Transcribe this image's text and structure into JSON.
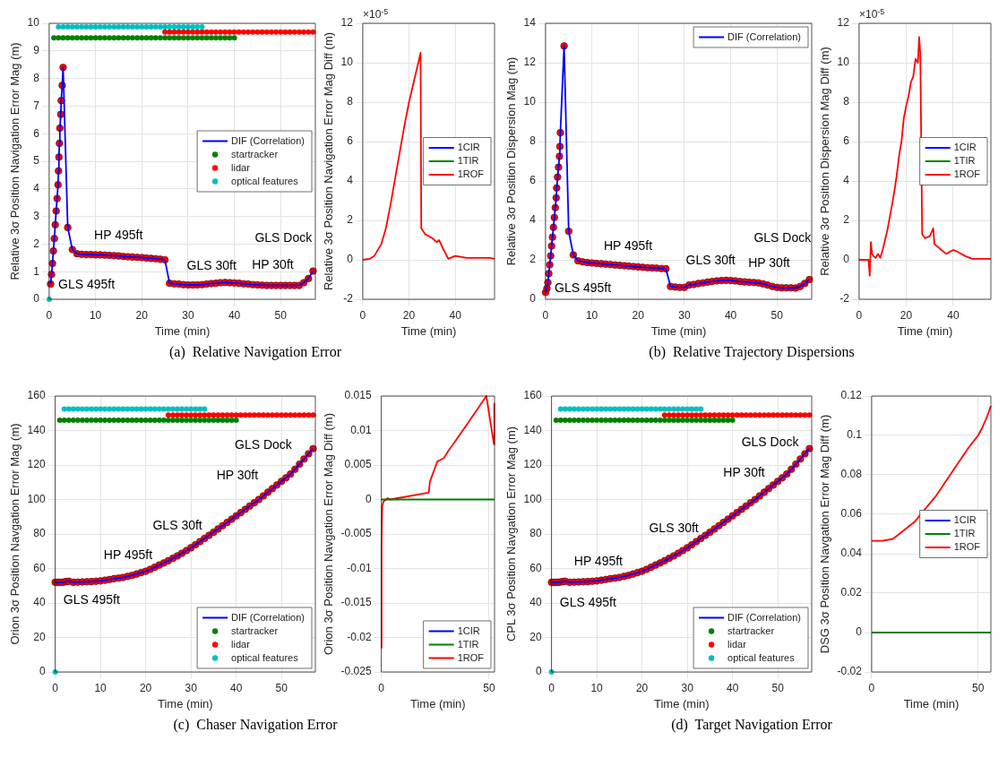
{
  "chart_data": [
    {
      "type": "line",
      "xlabel": "Time (min)",
      "ylabel": "Relative 3σ Position Navigation Error Mag (m)",
      "xlim": [
        0,
        57.5
      ],
      "xticks": [
        0,
        10,
        20,
        30,
        40,
        50
      ],
      "ylim": [
        0,
        10
      ],
      "yticks": [
        0,
        1,
        2,
        3,
        4,
        5,
        6,
        7,
        8,
        9,
        10
      ],
      "grid": true,
      "legend": "right",
      "x": [
        0.3,
        0.5,
        0.7,
        0.9,
        1.1,
        1.3,
        1.5,
        1.7,
        1.9,
        2,
        2.1,
        2.2,
        2.3,
        2.5,
        2.6,
        2.8,
        3,
        4,
        5,
        6,
        7,
        8,
        9,
        10,
        11,
        12,
        13,
        14,
        15,
        16,
        17,
        18,
        19,
        20,
        21,
        22,
        23,
        24,
        25,
        26,
        27,
        28,
        29,
        30,
        31,
        32,
        33,
        34,
        35,
        36,
        37,
        38,
        39,
        40,
        41,
        42,
        43,
        44,
        45,
        46,
        47,
        48,
        49,
        50,
        51,
        52,
        53,
        54,
        55,
        56,
        57
      ],
      "series": [
        {
          "name": "DIF (Correlation)",
          "color": "#0000ff",
          "values": [
            0.55,
            0.9,
            1.3,
            1.75,
            2.2,
            2.7,
            3.2,
            3.65,
            4.15,
            4.65,
            5.15,
            5.65,
            6.2,
            6.7,
            7.2,
            7.75,
            8.4,
            2.6,
            1.8,
            1.65,
            1.63,
            1.62,
            1.62,
            1.61,
            1.61,
            1.6,
            1.59,
            1.58,
            1.57,
            1.55,
            1.54,
            1.53,
            1.52,
            1.51,
            1.49,
            1.48,
            1.47,
            1.45,
            1.43,
            0.58,
            0.56,
            0.55,
            0.53,
            0.52,
            0.52,
            0.52,
            0.53,
            0.55,
            0.57,
            0.58,
            0.6,
            0.61,
            0.6,
            0.59,
            0.58,
            0.56,
            0.55,
            0.53,
            0.52,
            0.51,
            0.5,
            0.5,
            0.5,
            0.5,
            0.5,
            0.5,
            0.5,
            0.5,
            0.6,
            0.75,
            1.02
          ]
        },
        {
          "type": "scatter",
          "color": "#ff0000",
          "values": [
            0.55,
            0.9,
            1.3,
            1.75,
            2.2,
            2.7,
            3.2,
            3.65,
            4.15,
            4.65,
            5.15,
            5.65,
            6.2,
            6.7,
            7.2,
            7.75,
            8.4,
            2.6,
            1.8,
            1.65,
            1.63,
            1.62,
            1.62,
            1.61,
            1.61,
            1.6,
            1.59,
            1.58,
            1.57,
            1.55,
            1.54,
            1.53,
            1.52,
            1.51,
            1.49,
            1.48,
            1.47,
            1.45,
            1.43,
            0.58,
            0.56,
            0.55,
            0.53,
            0.52,
            0.52,
            0.52,
            0.53,
            0.55,
            0.57,
            0.58,
            0.6,
            0.61,
            0.6,
            0.59,
            0.58,
            0.56,
            0.55,
            0.53,
            0.52,
            0.51,
            0.5,
            0.5,
            0.5,
            0.5,
            0.5,
            0.5,
            0.5,
            0.5,
            0.6,
            0.75,
            1.02
          ]
        },
        {
          "type": "scatter",
          "name": "startracker",
          "color": "#008000",
          "x": [
            1,
            2,
            3,
            4,
            5,
            6,
            7,
            8,
            9,
            10,
            11,
            12,
            13,
            14,
            15,
            16,
            17,
            18,
            19,
            20,
            21,
            22,
            23,
            24,
            25,
            26,
            27,
            28,
            29,
            30,
            31,
            32,
            33,
            34,
            35,
            36,
            37,
            38,
            39,
            40
          ],
          "values": [
            9.47,
            9.47,
            9.47,
            9.47,
            9.47,
            9.47,
            9.47,
            9.47,
            9.47,
            9.47,
            9.47,
            9.47,
            9.47,
            9.47,
            9.47,
            9.47,
            9.47,
            9.47,
            9.47,
            9.47,
            9.47,
            9.47,
            9.47,
            9.47,
            9.47,
            9.47,
            9.47,
            9.47,
            9.47,
            9.47,
            9.47,
            9.47,
            9.47,
            9.47,
            9.47,
            9.47,
            9.47,
            9.47,
            9.47,
            9.47
          ]
        },
        {
          "type": "scatter",
          "name": "lidar",
          "color": "#ff0000",
          "x": [
            25,
            26,
            27,
            28,
            29,
            30,
            31,
            32,
            33,
            34,
            35,
            36,
            37,
            38,
            39,
            40,
            41,
            42,
            43,
            44,
            45,
            46,
            47,
            48,
            49,
            50,
            51,
            52,
            53,
            54,
            55,
            56,
            57
          ],
          "values": [
            9.68,
            9.68,
            9.68,
            9.68,
            9.68,
            9.68,
            9.68,
            9.68,
            9.68,
            9.68,
            9.68,
            9.68,
            9.68,
            9.68,
            9.68,
            9.68,
            9.68,
            9.68,
            9.68,
            9.68,
            9.68,
            9.68,
            9.68,
            9.68,
            9.68,
            9.68,
            9.68,
            9.68,
            9.68,
            9.68,
            9.68,
            9.68,
            9.68
          ]
        },
        {
          "type": "scatter",
          "name": "optical features",
          "color": "#00bfbf",
          "x": [
            0,
            2,
            3,
            4,
            5,
            6,
            7,
            8,
            9,
            10,
            11,
            12,
            13,
            14,
            15,
            16,
            17,
            18,
            19,
            20,
            21,
            22,
            23,
            24,
            25,
            26,
            27,
            28,
            29,
            30,
            31,
            32,
            33
          ],
          "values": [
            0,
            9.87,
            9.87,
            9.87,
            9.87,
            9.87,
            9.87,
            9.87,
            9.87,
            9.87,
            9.87,
            9.87,
            9.87,
            9.87,
            9.87,
            9.87,
            9.87,
            9.87,
            9.87,
            9.87,
            9.87,
            9.87,
            9.87,
            9.87,
            9.87,
            9.87,
            9.87,
            9.87,
            9.87,
            9.87,
            9.87,
            9.87,
            9.87
          ]
        }
      ],
      "annotations": [
        "(a)  Relative Navigation Error",
        "GLS 495ft",
        "HP 495ft",
        "GLS 30ft",
        "HP 30ft",
        "GLS Dock"
      ]
    },
    {
      "type": "line",
      "xlabel": "Time (min)",
      "ylabel": "Relative 3σ Position Navigation Error Mag Diff (m)",
      "xlim": [
        0,
        57
      ],
      "xticks": [
        0,
        20,
        40
      ],
      "ylim": [
        -2,
        12
      ],
      "yticks": [
        -2,
        0,
        2,
        4,
        6,
        8,
        10,
        12
      ],
      "grid": true,
      "legend": "right",
      "x": [
        0,
        3,
        5,
        8,
        10,
        12,
        15,
        18,
        20,
        22,
        24,
        25,
        25.3,
        27,
        30,
        31,
        32,
        33,
        35,
        37,
        40,
        45,
        50,
        55,
        57
      ],
      "series": [
        {
          "name": "1CIR",
          "color": "#0000ff",
          "values": [
            null,
            null,
            null,
            null,
            null,
            null,
            null,
            null,
            null,
            null,
            null,
            null,
            null,
            null,
            null,
            null,
            null,
            null,
            null,
            null,
            null,
            null,
            null,
            null,
            null
          ]
        },
        {
          "name": "1TIR",
          "color": "#008000",
          "values": [
            null,
            null,
            null,
            null,
            null,
            null,
            null,
            null,
            null,
            null,
            null,
            null,
            null,
            null,
            null,
            null,
            null,
            null,
            null,
            null,
            null,
            null,
            null,
            null,
            null
          ]
        },
        {
          "name": "1ROF",
          "color": "#ff0000",
          "values": [
            0,
            0.05,
            0.2,
            0.8,
            1.6,
            2.8,
            4.8,
            6.8,
            8,
            9,
            10,
            10.5,
            1.6,
            1.3,
            1.1,
            1,
            0.9,
            1,
            0.5,
            0.05,
            0.2,
            0.1,
            0.1,
            0.1,
            0.05
          ]
        }
      ],
      "annotations": [
        "×10$^{-5}$"
      ]
    },
    {
      "type": "line",
      "xlabel": "Time (min)",
      "ylabel": "Relative 3σ Position Dispersion Mag (m)",
      "xlim": [
        0,
        57.5
      ],
      "xticks": [
        0,
        10,
        20,
        30,
        40,
        50
      ],
      "ylim": [
        0,
        14
      ],
      "yticks": [
        0,
        2,
        4,
        6,
        8,
        10,
        12,
        14
      ],
      "grid": true,
      "legend": "top right",
      "x": [
        0,
        0.3,
        0.5,
        0.7,
        0.9,
        1.1,
        1.3,
        1.5,
        1.7,
        1.9,
        2.1,
        2.3,
        2.4,
        2.6,
        2.8,
        3,
        3.1,
        3.2,
        4,
        5,
        6,
        7,
        8,
        9,
        10,
        11,
        12,
        13,
        14,
        15,
        16,
        17,
        18,
        19,
        20,
        21,
        22,
        23,
        24,
        25,
        26,
        27,
        28,
        29,
        30,
        31,
        32,
        33,
        34,
        35,
        36,
        37,
        38,
        39,
        40,
        41,
        42,
        43,
        44,
        45,
        46,
        47,
        48,
        49,
        50,
        51,
        52,
        53,
        54,
        55,
        56,
        57
      ],
      "series": [
        {
          "name": "DIF (Correlation)",
          "color": "#0000ff",
          "values": [
            0.35,
            0.55,
            0.85,
            1.3,
            1.75,
            2.2,
            2.7,
            3.15,
            3.65,
            4.15,
            4.65,
            5.15,
            5.65,
            6.2,
            6.7,
            7.25,
            7.75,
            8.45,
            12.85,
            3.45,
            2.25,
            1.95,
            1.9,
            1.86,
            1.84,
            1.82,
            1.8,
            1.78,
            1.76,
            1.74,
            1.72,
            1.7,
            1.68,
            1.66,
            1.64,
            1.62,
            1.6,
            1.59,
            1.58,
            1.56,
            1.55,
            0.65,
            0.62,
            0.6,
            0.6,
            0.72,
            0.75,
            0.8,
            0.83,
            0.87,
            0.9,
            0.93,
            0.95,
            0.96,
            0.95,
            0.93,
            0.9,
            0.88,
            0.86,
            0.85,
            0.83,
            0.78,
            0.72,
            0.65,
            0.6,
            0.58,
            0.58,
            0.58,
            0.57,
            0.65,
            0.8,
            1
          ]
        },
        {
          "type": "scatter",
          "color": "#ff0000",
          "values": [
            0.35,
            0.55,
            0.85,
            1.3,
            1.75,
            2.2,
            2.7,
            3.15,
            3.65,
            4.15,
            4.65,
            5.15,
            5.65,
            6.2,
            6.7,
            7.25,
            7.75,
            8.45,
            12.85,
            3.45,
            2.25,
            1.95,
            1.9,
            1.86,
            1.84,
            1.82,
            1.8,
            1.78,
            1.76,
            1.74,
            1.72,
            1.7,
            1.68,
            1.66,
            1.64,
            1.62,
            1.6,
            1.59,
            1.58,
            1.56,
            1.55,
            0.65,
            0.62,
            0.6,
            0.6,
            0.72,
            0.75,
            0.8,
            0.83,
            0.87,
            0.9,
            0.93,
            0.95,
            0.96,
            0.95,
            0.93,
            0.9,
            0.88,
            0.86,
            0.85,
            0.83,
            0.78,
            0.72,
            0.65,
            0.6,
            0.58,
            0.58,
            0.58,
            0.57,
            0.65,
            0.8,
            1
          ]
        }
      ],
      "annotations": [
        "(b)  Relative Trajectory Dispersions",
        "GLS 495ft",
        "HP 495ft",
        "GLS 30ft",
        "HP 30ft",
        "GLS Dock"
      ]
    },
    {
      "type": "line",
      "xlabel": "Time (min)",
      "ylabel": "Relative 3σ Position Dispersion Mag Diff (m)",
      "xlim": [
        0,
        56
      ],
      "xticks": [
        0,
        20,
        40
      ],
      "ylim": [
        -2,
        12
      ],
      "yticks": [
        -2,
        0,
        2,
        4,
        6,
        8,
        10,
        12
      ],
      "grid": true,
      "legend": "right",
      "x": [
        0,
        4,
        4.5,
        5,
        5.5,
        6,
        7,
        8,
        9,
        10,
        12,
        14,
        15,
        16,
        17,
        18,
        19,
        20,
        21,
        22,
        23,
        24,
        25,
        25.5,
        26,
        26.8,
        28,
        30,
        31.5,
        32,
        35,
        37,
        40,
        42,
        45,
        48,
        50,
        56
      ],
      "series": [
        {
          "name": "1CIR",
          "color": "#0000ff",
          "values": [
            null,
            null,
            null,
            null,
            null,
            null,
            null,
            null,
            null,
            null,
            null,
            null,
            null,
            null,
            null,
            null,
            null,
            null,
            null,
            null,
            null,
            null,
            null,
            null,
            null,
            null,
            null,
            null,
            null,
            null,
            null,
            null,
            null,
            null,
            null,
            null,
            null,
            null
          ]
        },
        {
          "name": "1TIR",
          "color": "#008000",
          "values": [
            null,
            null,
            null,
            null,
            null,
            null,
            null,
            null,
            null,
            null,
            null,
            null,
            null,
            null,
            null,
            null,
            null,
            null,
            null,
            null,
            null,
            null,
            null,
            null,
            null,
            null,
            null,
            null,
            null,
            null,
            null,
            null,
            null,
            null,
            null,
            null,
            null,
            null
          ]
        },
        {
          "name": "1ROF",
          "color": "#ff0000",
          "values": [
            0,
            0,
            -0.8,
            0.9,
            0.3,
            0.2,
            0.1,
            0.3,
            0.1,
            0.5,
            1.5,
            2.8,
            3.5,
            4.3,
            5.3,
            6,
            7.2,
            7.8,
            8.3,
            9,
            9.3,
            10.2,
            10,
            11.3,
            10.5,
            1.3,
            1.1,
            1.2,
            1.6,
            0.8,
            0.5,
            0.3,
            0.5,
            0.4,
            0.2,
            0.05,
            0.05,
            0.05
          ]
        }
      ],
      "annotations": [
        "×10$^{-5}$"
      ]
    },
    {
      "type": "line",
      "xlabel": "Time (min)",
      "ylabel": "Orion 3σ Position Navgation Error Mag (m)",
      "xlim": [
        0,
        57.5
      ],
      "xticks": [
        0,
        10,
        20,
        30,
        40,
        50
      ],
      "ylim": [
        0,
        160
      ],
      "yticks": [
        0,
        20,
        40,
        60,
        80,
        100,
        120,
        140,
        160
      ],
      "grid": true,
      "legend": "bottom right",
      "x": [
        0,
        0.5,
        1,
        1.5,
        2,
        2.5,
        3,
        4,
        5,
        6,
        7,
        8,
        9,
        10,
        11,
        12,
        13,
        14,
        15,
        16,
        17,
        18,
        19,
        20,
        21,
        22,
        23,
        24,
        25,
        26,
        27,
        28,
        29,
        30,
        31,
        32,
        33,
        34,
        35,
        36,
        37,
        38,
        39,
        40,
        41,
        42,
        43,
        44,
        45,
        46,
        47,
        48,
        49,
        50,
        51,
        52,
        53,
        54,
        55,
        56,
        57
      ],
      "series": [
        {
          "name": "DIF (Correlation)",
          "color": "#0000ff",
          "values": [
            52,
            52,
            52,
            52,
            52.2,
            52.4,
            52.6,
            52,
            52.1,
            52.2,
            52.3,
            52.4,
            52.6,
            52.8,
            53.2,
            53.6,
            54.1,
            54.4,
            54.8,
            55.4,
            56,
            56.8,
            57.6,
            58.4,
            59.5,
            60.7,
            62,
            63.2,
            64.5,
            65.9,
            67.3,
            68.8,
            70.4,
            72,
            73.8,
            75.6,
            77.4,
            79.2,
            81,
            82.9,
            84.8,
            86.7,
            88.6,
            90.5,
            92.4,
            94.3,
            96.2,
            98.1,
            100,
            102.1,
            104.2,
            106.3,
            108.4,
            110.5,
            112.6,
            114.8,
            117.5,
            120.5,
            123.5,
            126.5,
            129.5
          ]
        },
        {
          "type": "scatter",
          "color": "#ff0000",
          "values": [
            52,
            52,
            52,
            52,
            52.2,
            52.4,
            52.6,
            52,
            52.1,
            52.2,
            52.3,
            52.4,
            52.6,
            52.8,
            53.2,
            53.6,
            54.1,
            54.4,
            54.8,
            55.4,
            56,
            56.8,
            57.6,
            58.4,
            59.5,
            60.7,
            62,
            63.2,
            64.5,
            65.9,
            67.3,
            68.8,
            70.4,
            72,
            73.8,
            75.6,
            77.4,
            79.2,
            81,
            82.9,
            84.8,
            86.7,
            88.6,
            90.5,
            92.4,
            94.3,
            96.2,
            98.1,
            100,
            102.1,
            104.2,
            106.3,
            108.4,
            110.5,
            112.6,
            114.8,
            117.5,
            120.5,
            123.5,
            126.5,
            129.5
          ]
        },
        {
          "type": "scatter",
          "name": "startracker",
          "color": "#008000",
          "x": [
            1,
            2,
            3,
            4,
            5,
            6,
            7,
            8,
            9,
            10,
            11,
            12,
            13,
            14,
            15,
            16,
            17,
            18,
            19,
            20,
            21,
            22,
            23,
            24,
            25,
            26,
            27,
            28,
            29,
            30,
            31,
            32,
            33,
            34,
            35,
            36,
            37,
            38,
            39,
            40
          ],
          "values": [
            146,
            146,
            146,
            146,
            146,
            146,
            146,
            146,
            146,
            146,
            146,
            146,
            146,
            146,
            146,
            146,
            146,
            146,
            146,
            146,
            146,
            146,
            146,
            146,
            146,
            146,
            146,
            146,
            146,
            146,
            146,
            146,
            146,
            146,
            146,
            146,
            146,
            146,
            146,
            146
          ]
        },
        {
          "type": "scatter",
          "name": "lidar",
          "color": "#ff0000",
          "x": [
            25,
            26,
            27,
            28,
            29,
            30,
            31,
            32,
            33,
            34,
            35,
            36,
            37,
            38,
            39,
            40,
            41,
            42,
            43,
            44,
            45,
            46,
            47,
            48,
            49,
            50,
            51,
            52,
            53,
            54,
            55,
            56,
            57
          ],
          "values": [
            149,
            149,
            149,
            149,
            149,
            149,
            149,
            149,
            149,
            149,
            149,
            149,
            149,
            149,
            149,
            149,
            149,
            149,
            149,
            149,
            149,
            149,
            149,
            149,
            149,
            149,
            149,
            149,
            149,
            149,
            149,
            149,
            149
          ]
        },
        {
          "type": "scatter",
          "name": "optical features",
          "color": "#00bfbf",
          "x": [
            0,
            2,
            3,
            4,
            5,
            6,
            7,
            8,
            9,
            10,
            11,
            12,
            13,
            14,
            15,
            16,
            17,
            18,
            19,
            20,
            21,
            22,
            23,
            24,
            25,
            26,
            27,
            28,
            29,
            30,
            31,
            32,
            33
          ],
          "values": [
            0,
            152.5,
            152.5,
            152.5,
            152.5,
            152.5,
            152.5,
            152.5,
            152.5,
            152.5,
            152.5,
            152.5,
            152.5,
            152.5,
            152.5,
            152.5,
            152.5,
            152.5,
            152.5,
            152.5,
            152.5,
            152.5,
            152.5,
            152.5,
            152.5,
            152.5,
            152.5,
            152.5,
            152.5,
            152.5,
            152.5,
            152.5,
            152.5
          ]
        }
      ],
      "annotations": [
        "(c)  Chaser Navigation Error",
        "GLS 495ft",
        "HP 495ft",
        "GLS 30ft",
        "HP 30ft",
        "GLS Dock"
      ]
    },
    {
      "type": "line",
      "xlabel": "Time (min)",
      "ylabel": "Orion 3σ Position Navgation Error Mag Diff (m)",
      "xlim": [
        0,
        52.5
      ],
      "xticks": [
        0,
        50
      ],
      "ylim": [
        -0.025,
        0.015
      ],
      "yticks": [
        -0.025,
        -0.02,
        -0.015,
        -0.01,
        -0.005,
        0,
        0.005,
        0.01,
        0.015
      ],
      "grid": true,
      "legend": "bottom right",
      "x": [
        0,
        0.1,
        0.4,
        1,
        3,
        4,
        22,
        22.5,
        23,
        26,
        29,
        31,
        40,
        48.7,
        52.2,
        52.4
      ],
      "series": [
        {
          "name": "1CIR",
          "color": "#0000ff",
          "values": [
            null,
            null,
            null,
            null,
            null,
            null,
            null,
            null,
            null,
            null,
            null,
            null,
            null,
            null,
            null,
            null
          ]
        },
        {
          "name": "1TIR",
          "color": "#008000",
          "x": [
            0,
            52.5
          ],
          "values": [
            0,
            0
          ]
        },
        {
          "name": "1ROF",
          "color": "#ff0000",
          "values": [
            -0.0215,
            -0.006,
            -0.001,
            -0.0003,
            0.0002,
            0,
            0.001,
            0.0025,
            0.003,
            0.0055,
            0.006,
            0.007,
            0.011,
            0.015,
            0.008,
            0.014
          ]
        }
      ]
    },
    {
      "type": "line",
      "xlabel": "Time (min)",
      "ylabel": "CPL 3σ Position Navgation Error Mag (m)",
      "xlim": [
        0,
        57.5
      ],
      "xticks": [
        0,
        10,
        20,
        30,
        40,
        50
      ],
      "ylim": [
        0,
        160
      ],
      "yticks": [
        0,
        20,
        40,
        60,
        80,
        100,
        120,
        140,
        160
      ],
      "grid": true,
      "legend": "bottom right",
      "x": [
        0,
        0.5,
        1,
        1.5,
        2,
        2.5,
        3,
        4,
        5,
        6,
        7,
        8,
        9,
        10,
        11,
        12,
        13,
        14,
        15,
        16,
        17,
        18,
        19,
        20,
        21,
        22,
        23,
        24,
        25,
        26,
        27,
        28,
        29,
        30,
        31,
        32,
        33,
        34,
        35,
        36,
        37,
        38,
        39,
        40,
        41,
        42,
        43,
        44,
        45,
        46,
        47,
        48,
        49,
        50,
        51,
        52,
        53,
        54,
        55,
        56,
        57
      ],
      "series": [
        {
          "name": "DIF (Correlation)",
          "color": "#0000ff",
          "values": [
            52,
            52,
            52,
            52,
            52.2,
            52.4,
            52.6,
            52,
            52.1,
            52.2,
            52.3,
            52.4,
            52.6,
            52.8,
            53.2,
            53.6,
            54.1,
            54.4,
            54.8,
            55.4,
            56,
            56.8,
            57.6,
            58.4,
            59.5,
            60.7,
            62,
            63.2,
            64.5,
            65.9,
            67.3,
            68.8,
            70.4,
            72,
            73.8,
            75.6,
            77.4,
            79.2,
            81,
            82.9,
            84.8,
            86.7,
            88.6,
            90.5,
            92.4,
            94.3,
            96.2,
            98.1,
            100,
            102.1,
            104.2,
            106.3,
            108.4,
            110.5,
            112.6,
            114.8,
            117.5,
            120.5,
            123.5,
            126.5,
            129.5
          ]
        },
        {
          "type": "scatter",
          "color": "#ff0000",
          "values": [
            52,
            52,
            52,
            52,
            52.2,
            52.4,
            52.6,
            52,
            52.1,
            52.2,
            52.3,
            52.4,
            52.6,
            52.8,
            53.2,
            53.6,
            54.1,
            54.4,
            54.8,
            55.4,
            56,
            56.8,
            57.6,
            58.4,
            59.5,
            60.7,
            62,
            63.2,
            64.5,
            65.9,
            67.3,
            68.8,
            70.4,
            72,
            73.8,
            75.6,
            77.4,
            79.2,
            81,
            82.9,
            84.8,
            86.7,
            88.6,
            90.5,
            92.4,
            94.3,
            96.2,
            98.1,
            100,
            102.1,
            104.2,
            106.3,
            108.4,
            110.5,
            112.6,
            114.8,
            117.5,
            120.5,
            123.5,
            126.5,
            129.5
          ]
        },
        {
          "type": "scatter",
          "name": "startracker",
          "color": "#008000",
          "x": [
            1,
            2,
            3,
            4,
            5,
            6,
            7,
            8,
            9,
            10,
            11,
            12,
            13,
            14,
            15,
            16,
            17,
            18,
            19,
            20,
            21,
            22,
            23,
            24,
            25,
            26,
            27,
            28,
            29,
            30,
            31,
            32,
            33,
            34,
            35,
            36,
            37,
            38,
            39,
            40
          ],
          "values": [
            146,
            146,
            146,
            146,
            146,
            146,
            146,
            146,
            146,
            146,
            146,
            146,
            146,
            146,
            146,
            146,
            146,
            146,
            146,
            146,
            146,
            146,
            146,
            146,
            146,
            146,
            146,
            146,
            146,
            146,
            146,
            146,
            146,
            146,
            146,
            146,
            146,
            146,
            146,
            146
          ]
        },
        {
          "type": "scatter",
          "name": "lidar",
          "color": "#ff0000",
          "x": [
            25,
            26,
            27,
            28,
            29,
            30,
            31,
            32,
            33,
            34,
            35,
            36,
            37,
            38,
            39,
            40,
            41,
            42,
            43,
            44,
            45,
            46,
            47,
            48,
            49,
            50,
            51,
            52,
            53,
            54,
            55,
            56,
            57
          ],
          "values": [
            149,
            149,
            149,
            149,
            149,
            149,
            149,
            149,
            149,
            149,
            149,
            149,
            149,
            149,
            149,
            149,
            149,
            149,
            149,
            149,
            149,
            149,
            149,
            149,
            149,
            149,
            149,
            149,
            149,
            149,
            149,
            149,
            149
          ]
        },
        {
          "type": "scatter",
          "name": "optical features",
          "color": "#00bfbf",
          "x": [
            0,
            2,
            3,
            4,
            5,
            6,
            7,
            8,
            9,
            10,
            11,
            12,
            13,
            14,
            15,
            16,
            17,
            18,
            19,
            20,
            21,
            22,
            23,
            24,
            25,
            26,
            27,
            28,
            29,
            30,
            31,
            32,
            33
          ],
          "values": [
            0,
            152.5,
            152.5,
            152.5,
            152.5,
            152.5,
            152.5,
            152.5,
            152.5,
            152.5,
            152.5,
            152.5,
            152.5,
            152.5,
            152.5,
            152.5,
            152.5,
            152.5,
            152.5,
            152.5,
            152.5,
            152.5,
            152.5,
            152.5,
            152.5,
            152.5,
            152.5,
            152.5,
            152.5,
            152.5,
            152.5,
            152.5,
            152.5
          ]
        }
      ],
      "annotations": [
        "(d)  Target Navigation Error",
        "GLS 495ft",
        "HP 495ft",
        "GLS 30ft",
        "HP 30ft",
        "GLS Dock"
      ]
    },
    {
      "type": "line",
      "xlabel": "Time (min)",
      "ylabel": "DSG 3σ Position Navgation Error Mag Diff (m)",
      "xlim": [
        0,
        56
      ],
      "xticks": [
        0,
        50
      ],
      "ylim": [
        -0.02,
        0.12
      ],
      "yticks": [
        -0.02,
        0,
        0.02,
        0.04,
        0.06,
        0.08,
        0.1,
        0.12
      ],
      "grid": true,
      "legend": "right",
      "x": [
        0,
        5,
        10,
        20,
        30,
        40,
        45,
        50,
        52,
        54,
        56
      ],
      "series": [
        {
          "name": "1CIR",
          "color": "#0000ff",
          "values": [
            null,
            null,
            null,
            null,
            null,
            null,
            null,
            null,
            null,
            null,
            null
          ]
        },
        {
          "name": "1TIR",
          "color": "#008000",
          "x": [
            0,
            56
          ],
          "values": [
            0,
            0
          ]
        },
        {
          "name": "1ROF",
          "color": "#ff0000",
          "values": [
            0.0465,
            0.0465,
            0.0475,
            0.056,
            0.069,
            0.085,
            0.093,
            0.1,
            0.104,
            0.109,
            0.115
          ]
        }
      ]
    }
  ]
}
